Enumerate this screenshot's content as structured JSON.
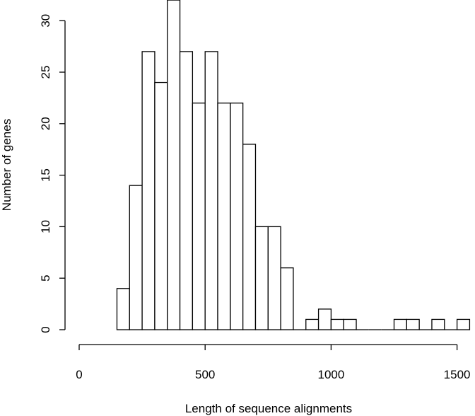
{
  "chart_data": {
    "type": "bar",
    "subtype": "histogram",
    "xlabel": "Length of sequence alignments",
    "ylabel": "Number of genes",
    "bin_width": 50,
    "bins": [
      {
        "start": 150,
        "end": 200,
        "count": 4
      },
      {
        "start": 200,
        "end": 250,
        "count": 14
      },
      {
        "start": 250,
        "end": 300,
        "count": 27
      },
      {
        "start": 300,
        "end": 350,
        "count": 24
      },
      {
        "start": 350,
        "end": 400,
        "count": 32
      },
      {
        "start": 400,
        "end": 450,
        "count": 27
      },
      {
        "start": 450,
        "end": 500,
        "count": 22
      },
      {
        "start": 500,
        "end": 550,
        "count": 27
      },
      {
        "start": 550,
        "end": 600,
        "count": 22
      },
      {
        "start": 600,
        "end": 650,
        "count": 22
      },
      {
        "start": 650,
        "end": 700,
        "count": 18
      },
      {
        "start": 700,
        "end": 750,
        "count": 10
      },
      {
        "start": 750,
        "end": 800,
        "count": 10
      },
      {
        "start": 800,
        "end": 850,
        "count": 6
      },
      {
        "start": 850,
        "end": 900,
        "count": 0
      },
      {
        "start": 900,
        "end": 950,
        "count": 1
      },
      {
        "start": 950,
        "end": 1000,
        "count": 2
      },
      {
        "start": 1000,
        "end": 1050,
        "count": 1
      },
      {
        "start": 1050,
        "end": 1100,
        "count": 1
      },
      {
        "start": 1100,
        "end": 1150,
        "count": 0
      },
      {
        "start": 1150,
        "end": 1200,
        "count": 0
      },
      {
        "start": 1200,
        "end": 1250,
        "count": 0
      },
      {
        "start": 1250,
        "end": 1300,
        "count": 1
      },
      {
        "start": 1300,
        "end": 1350,
        "count": 1
      },
      {
        "start": 1350,
        "end": 1400,
        "count": 0
      },
      {
        "start": 1400,
        "end": 1450,
        "count": 1
      },
      {
        "start": 1450,
        "end": 1500,
        "count": 0
      },
      {
        "start": 1500,
        "end": 1550,
        "count": 1
      }
    ],
    "xlim": [
      0,
      1550
    ],
    "ylim": [
      0,
      32
    ],
    "x_ticks": [
      0,
      500,
      1000,
      1500
    ],
    "y_ticks": [
      0,
      5,
      10,
      15,
      20,
      25,
      30
    ],
    "grid": false,
    "legend": "none"
  }
}
